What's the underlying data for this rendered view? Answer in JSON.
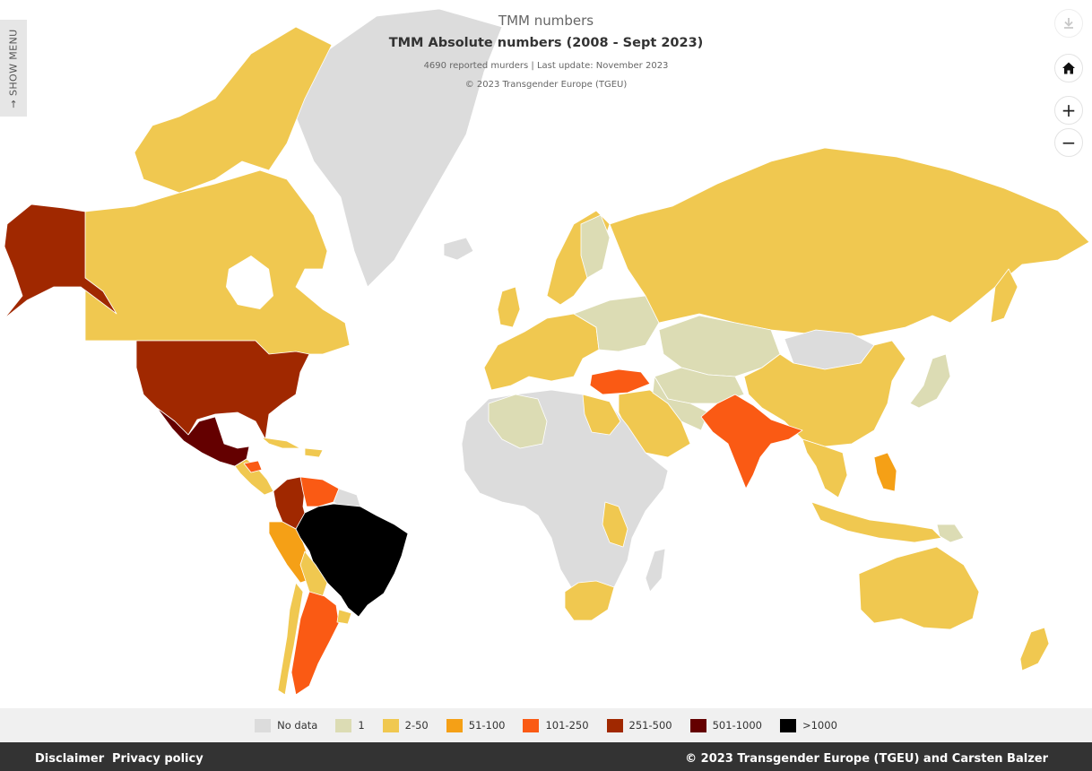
{
  "titles": {
    "top": "TMM numbers",
    "main": "TMM Absolute numbers (2008 - Sept 2023)",
    "subtitle": "4690 reported murders | Last update: November 2023",
    "credit": "© 2023 Transgender Europe (TGEU)"
  },
  "show_menu_label": "→ SHOW MENU",
  "controls": {
    "download_icon": "download-icon",
    "home_icon": "home-icon",
    "zoom_in": "+",
    "zoom_out": "−"
  },
  "colors": {
    "no_data": "#dcdcdc",
    "one": "#dcdcb4",
    "c2_50": "#f0c850",
    "c51_100": "#f5a016",
    "c101_250": "#fa5a14",
    "c251_500": "#a02800",
    "c501_1000": "#640000",
    "over_1000": "#000000"
  },
  "legend": [
    {
      "label": "No data",
      "color": "#dcdcdc"
    },
    {
      "label": "1",
      "color": "#dcdcb4"
    },
    {
      "label": "2-50",
      "color": "#f0c850"
    },
    {
      "label": "51-100",
      "color": "#f5a016"
    },
    {
      "label": "101-250",
      "color": "#fa5a14"
    },
    {
      "label": "251-500",
      "color": "#a02800"
    },
    {
      "label": "501-1000",
      "color": "#640000"
    },
    {
      "label": ">1000",
      "color": "#000000"
    }
  ],
  "footer": {
    "disclaimer": "Disclaimer",
    "privacy": "Privacy policy",
    "copyright": "© 2023 Transgender Europe (TGEU) and Carsten Balzer"
  },
  "map_regions": [
    {
      "name": "Alaska",
      "category": "251-500"
    },
    {
      "name": "Canada",
      "category": "2-50"
    },
    {
      "name": "Greenland",
      "category": "No data"
    },
    {
      "name": "United States",
      "category": "251-500"
    },
    {
      "name": "Mexico",
      "category": "501-1000"
    },
    {
      "name": "Colombia",
      "category": "251-500"
    },
    {
      "name": "Venezuela",
      "category": "101-250"
    },
    {
      "name": "Peru",
      "category": "51-100"
    },
    {
      "name": "Brazil",
      "category": ">1000"
    },
    {
      "name": "Argentina",
      "category": "101-250"
    },
    {
      "name": "Chile",
      "category": "2-50"
    },
    {
      "name": "Russia",
      "category": "2-50"
    },
    {
      "name": "Kazakhstan",
      "category": "1"
    },
    {
      "name": "China",
      "category": "2-50"
    },
    {
      "name": "Mongolia",
      "category": "No data"
    },
    {
      "name": "India",
      "category": "101-250"
    },
    {
      "name": "Turkey",
      "category": "101-250"
    },
    {
      "name": "Australia",
      "category": "2-50"
    },
    {
      "name": "Africa",
      "category": "No data"
    },
    {
      "name": "South Africa",
      "category": "2-50"
    },
    {
      "name": "Philippines",
      "category": "51-100"
    }
  ]
}
